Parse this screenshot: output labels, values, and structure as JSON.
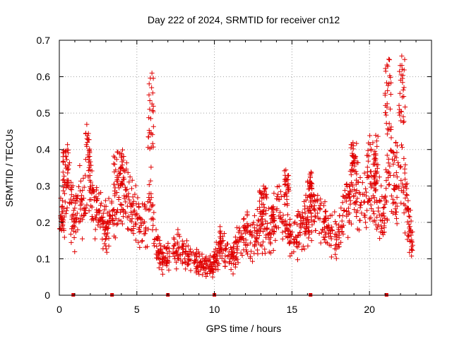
{
  "chart_data": {
    "type": "scatter",
    "title": "Day 222 of 2024, SRMTID for receiver cn12",
    "xlabel": "GPS time / hours",
    "ylabel": "SRMTID / TECUs",
    "xlim": [
      0,
      24
    ],
    "ylim": [
      0,
      0.7
    ],
    "xticks": [
      0,
      5,
      10,
      15,
      20
    ],
    "xtick_labels": [
      "0",
      "5",
      "10",
      "15",
      "20"
    ],
    "yticks": [
      0,
      0.1,
      0.2,
      0.3,
      0.4,
      0.5,
      0.6,
      0.7
    ],
    "ytick_labels": [
      "0",
      "0.1",
      "0.2",
      "0.3",
      "0.4",
      "0.5",
      "0.6",
      "0.7"
    ],
    "grid": true,
    "marker": "plus",
    "color": "#e00000",
    "series": [
      {
        "name": "SRMTID",
        "trend": [
          [
            0.0,
            0.19
          ],
          [
            0.3,
            0.22
          ],
          [
            0.5,
            0.32
          ],
          [
            0.7,
            0.27
          ],
          [
            1.0,
            0.19
          ],
          [
            1.3,
            0.27
          ],
          [
            1.6,
            0.24
          ],
          [
            1.9,
            0.33
          ],
          [
            2.2,
            0.26
          ],
          [
            2.5,
            0.24
          ],
          [
            2.8,
            0.21
          ],
          [
            3.1,
            0.19
          ],
          [
            3.4,
            0.22
          ],
          [
            3.8,
            0.26
          ],
          [
            4.1,
            0.3
          ],
          [
            4.4,
            0.27
          ],
          [
            4.8,
            0.22
          ],
          [
            5.2,
            0.2
          ],
          [
            5.6,
            0.2
          ],
          [
            5.9,
            0.26
          ],
          [
            6.2,
            0.13
          ],
          [
            6.6,
            0.1
          ],
          [
            7.0,
            0.11
          ],
          [
            7.5,
            0.13
          ],
          [
            8.0,
            0.12
          ],
          [
            8.5,
            0.1
          ],
          [
            9.0,
            0.09
          ],
          [
            9.5,
            0.075
          ],
          [
            10.0,
            0.09
          ],
          [
            10.4,
            0.14
          ],
          [
            10.8,
            0.12
          ],
          [
            11.2,
            0.1
          ],
          [
            11.6,
            0.15
          ],
          [
            12.0,
            0.17
          ],
          [
            12.5,
            0.15
          ],
          [
            13.0,
            0.19
          ],
          [
            13.5,
            0.18
          ],
          [
            14.0,
            0.22
          ],
          [
            14.5,
            0.22
          ],
          [
            15.0,
            0.14
          ],
          [
            15.4,
            0.17
          ],
          [
            15.8,
            0.2
          ],
          [
            16.2,
            0.22
          ],
          [
            16.6,
            0.24
          ],
          [
            17.0,
            0.2
          ],
          [
            17.5,
            0.18
          ],
          [
            18.0,
            0.16
          ],
          [
            18.5,
            0.24
          ],
          [
            19.0,
            0.29
          ],
          [
            19.5,
            0.24
          ],
          [
            20.0,
            0.3
          ],
          [
            20.5,
            0.27
          ],
          [
            20.9,
            0.2
          ],
          [
            21.3,
            0.4
          ],
          [
            21.8,
            0.3
          ],
          [
            22.2,
            0.33
          ],
          [
            22.6,
            0.17
          ],
          [
            22.8,
            0.14
          ]
        ],
        "bursts": [
          {
            "x": [
              1.7,
              2.0
            ],
            "y": [
              0.34,
              0.47
            ]
          },
          {
            "x": [
              3.5,
              4.1
            ],
            "y": [
              0.3,
              0.4
            ]
          },
          {
            "x": [
              5.7,
              6.1
            ],
            "y": [
              0.4,
              0.61
            ]
          },
          {
            "x": [
              0.2,
              0.6
            ],
            "y": [
              0.3,
              0.4
            ]
          },
          {
            "x": [
              14.5,
              14.8
            ],
            "y": [
              0.27,
              0.35
            ]
          },
          {
            "x": [
              16.0,
              16.3
            ],
            "y": [
              0.27,
              0.35
            ]
          },
          {
            "x": [
              18.8,
              19.2
            ],
            "y": [
              0.33,
              0.42
            ]
          },
          {
            "x": [
              19.8,
              20.6
            ],
            "y": [
              0.32,
              0.44
            ]
          },
          {
            "x": [
              21.0,
              21.4
            ],
            "y": [
              0.45,
              0.66
            ]
          },
          {
            "x": [
              21.9,
              22.3
            ],
            "y": [
              0.45,
              0.66
            ]
          },
          {
            "x": [
              12.9,
              13.4
            ],
            "y": [
              0.22,
              0.3
            ]
          }
        ],
        "baseline_markers_x": [
          0.9,
          3.4,
          7.0,
          10.0,
          16.2,
          21.1
        ]
      }
    ]
  }
}
